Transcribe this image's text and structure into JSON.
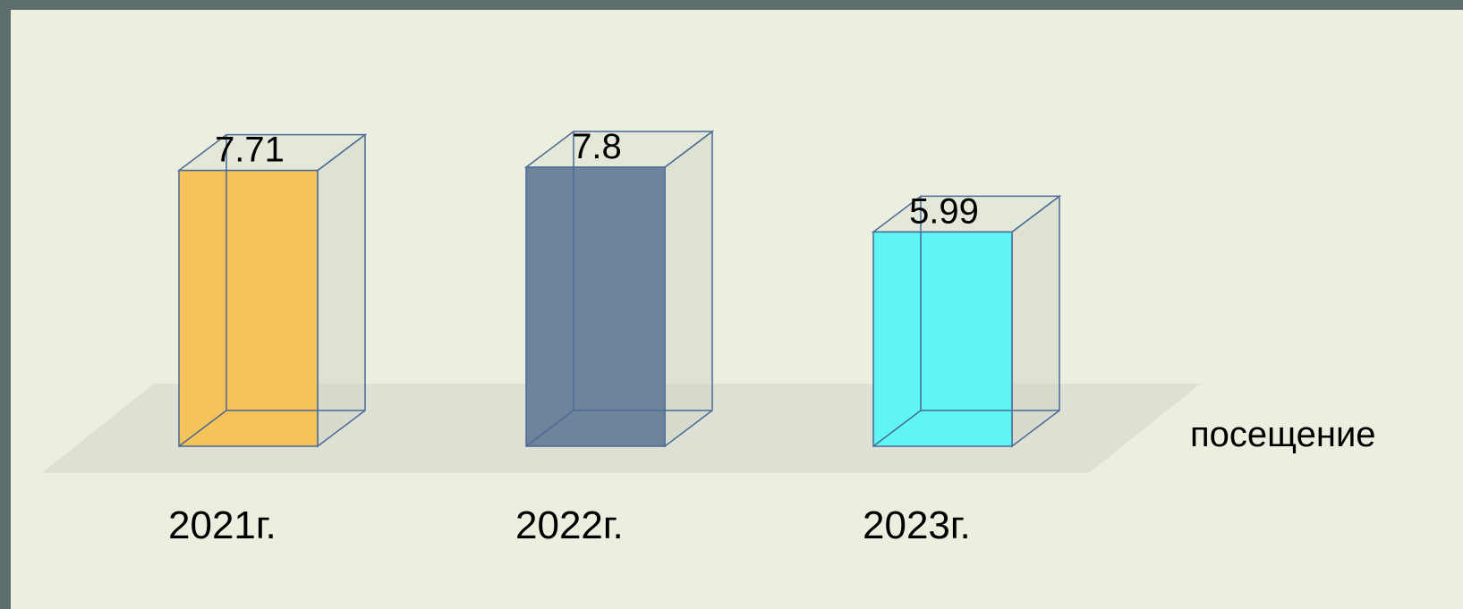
{
  "chart_data": {
    "type": "bar",
    "style": "3d-box",
    "categories": [
      "2021г.",
      "2022г.",
      "2023г."
    ],
    "series": [
      {
        "name": "посещение",
        "values": [
          7.71,
          7.8,
          5.99
        ]
      }
    ],
    "data_labels": [
      "7.71",
      "7.8",
      "5.99"
    ],
    "colors": [
      "#f5c35a",
      "#6e849a",
      "#5ff5f2"
    ],
    "title": "",
    "xlabel": "",
    "ylabel": "",
    "ylim": [
      0,
      8
    ],
    "grid": false,
    "legend": "right"
  }
}
